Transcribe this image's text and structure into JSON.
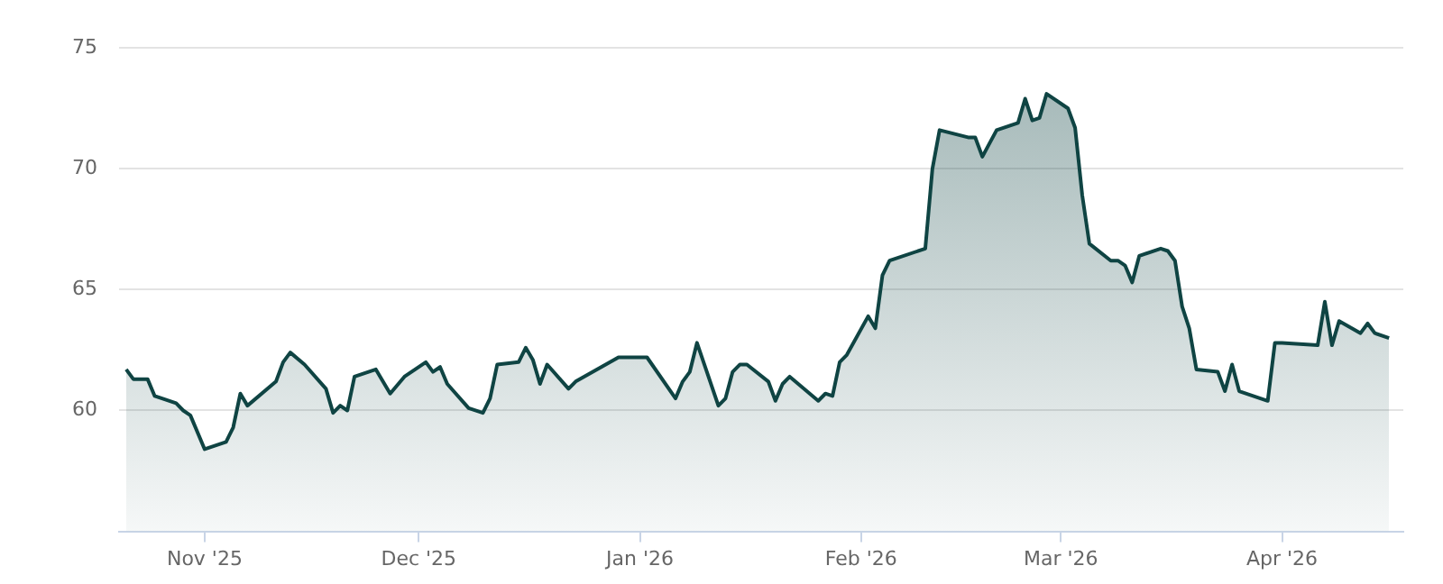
{
  "chart_data": {
    "type": "area",
    "x": [
      "2025-10-21",
      "2025-10-22",
      "2025-10-24",
      "2025-10-25",
      "2025-10-28",
      "2025-10-29",
      "2025-10-30",
      "2025-11-01",
      "2025-11-04",
      "2025-11-05",
      "2025-11-06",
      "2025-11-07",
      "2025-11-11",
      "2025-11-12",
      "2025-11-13",
      "2025-11-15",
      "2025-11-18",
      "2025-11-19",
      "2025-11-20",
      "2025-11-21",
      "2025-11-22",
      "2025-11-25",
      "2025-11-27",
      "2025-11-29",
      "2025-12-02",
      "2025-12-03",
      "2025-12-04",
      "2025-12-05",
      "2025-12-08",
      "2025-12-10",
      "2025-12-11",
      "2025-12-12",
      "2025-12-15",
      "2025-12-16",
      "2025-12-17",
      "2025-12-18",
      "2025-12-19",
      "2025-12-22",
      "2025-12-23",
      "2025-12-29",
      "2026-01-01",
      "2026-01-02",
      "2026-01-06",
      "2026-01-07",
      "2026-01-08",
      "2026-01-09",
      "2026-01-12",
      "2026-01-13",
      "2026-01-14",
      "2026-01-15",
      "2026-01-16",
      "2026-01-19",
      "2026-01-20",
      "2026-01-21",
      "2026-01-22",
      "2026-01-26",
      "2026-01-27",
      "2026-01-28",
      "2026-01-29",
      "2026-01-30",
      "2026-02-02",
      "2026-02-03",
      "2026-02-04",
      "2026-02-05",
      "2026-02-10",
      "2026-02-11",
      "2026-02-12",
      "2026-02-16",
      "2026-02-17",
      "2026-02-18",
      "2026-02-20",
      "2026-02-23",
      "2026-02-24",
      "2026-02-25",
      "2026-02-26",
      "2026-02-27",
      "2026-03-02",
      "2026-03-03",
      "2026-03-04",
      "2026-03-05",
      "2026-03-08",
      "2026-03-09",
      "2026-03-10",
      "2026-03-11",
      "2026-03-12",
      "2026-03-15",
      "2026-03-16",
      "2026-03-17",
      "2026-03-18",
      "2026-03-19",
      "2026-03-20",
      "2026-03-23",
      "2026-03-24",
      "2026-03-25",
      "2026-03-26",
      "2026-03-30",
      "2026-03-31",
      "2026-04-01",
      "2026-04-06",
      "2026-04-07",
      "2026-04-08",
      "2026-04-09",
      "2026-04-12",
      "2026-04-13",
      "2026-04-14",
      "2026-04-16"
    ],
    "series": [
      {
        "color": "#0f4443",
        "values": [
          61.7,
          61.3,
          61.3,
          60.6,
          60.3,
          60.0,
          59.8,
          58.4,
          58.7,
          59.3,
          60.7,
          60.2,
          61.2,
          62.0,
          62.4,
          61.9,
          60.9,
          59.9,
          60.2,
          60.0,
          61.4,
          61.7,
          60.7,
          61.4,
          62.0,
          61.6,
          61.8,
          61.1,
          60.1,
          59.9,
          60.5,
          61.9,
          62.0,
          62.6,
          62.1,
          61.1,
          61.9,
          60.9,
          61.2,
          62.2,
          62.2,
          62.2,
          60.5,
          61.2,
          61.6,
          62.8,
          60.2,
          60.5,
          61.6,
          61.9,
          61.9,
          61.2,
          60.4,
          61.1,
          61.4,
          60.4,
          60.7,
          60.6,
          62.0,
          62.3,
          63.9,
          63.4,
          65.6,
          66.2,
          66.7,
          70.0,
          71.6,
          71.3,
          71.3,
          70.5,
          71.6,
          71.9,
          72.9,
          72.0,
          72.1,
          73.1,
          72.5,
          71.7,
          68.9,
          66.9,
          66.2,
          66.2,
          66.0,
          65.3,
          66.4,
          66.7,
          66.6,
          66.2,
          64.3,
          63.4,
          61.7,
          61.6,
          60.8,
          61.9,
          60.8,
          60.4,
          62.8,
          62.8,
          62.7,
          64.5,
          62.7,
          63.7,
          63.2,
          63.6,
          63.2,
          63.0
        ]
      }
    ],
    "xlim": [
      "2025-10-20",
      "2026-04-18"
    ],
    "xticks": [
      {
        "value": "2025-11-01",
        "label": "Nov '25"
      },
      {
        "value": "2025-12-01",
        "label": "Dec '25"
      },
      {
        "value": "2026-01-01",
        "label": "Jan '26"
      },
      {
        "value": "2026-02-01",
        "label": "Feb '26"
      },
      {
        "value": "2026-03-01",
        "label": "Mar '26"
      },
      {
        "value": "2026-04-01",
        "label": "Apr '26"
      }
    ],
    "ylim": [
      55,
      75
    ],
    "yticks": [
      60,
      65,
      70,
      75
    ],
    "grid": "y",
    "legend": false,
    "marker": "none",
    "line_style": "solid"
  }
}
